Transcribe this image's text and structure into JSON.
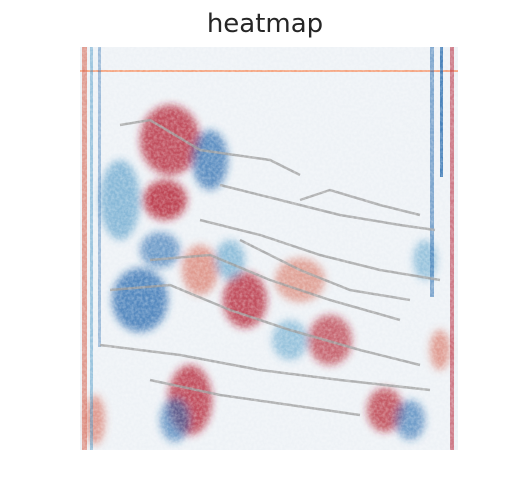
{
  "title": "heatmap"
}
